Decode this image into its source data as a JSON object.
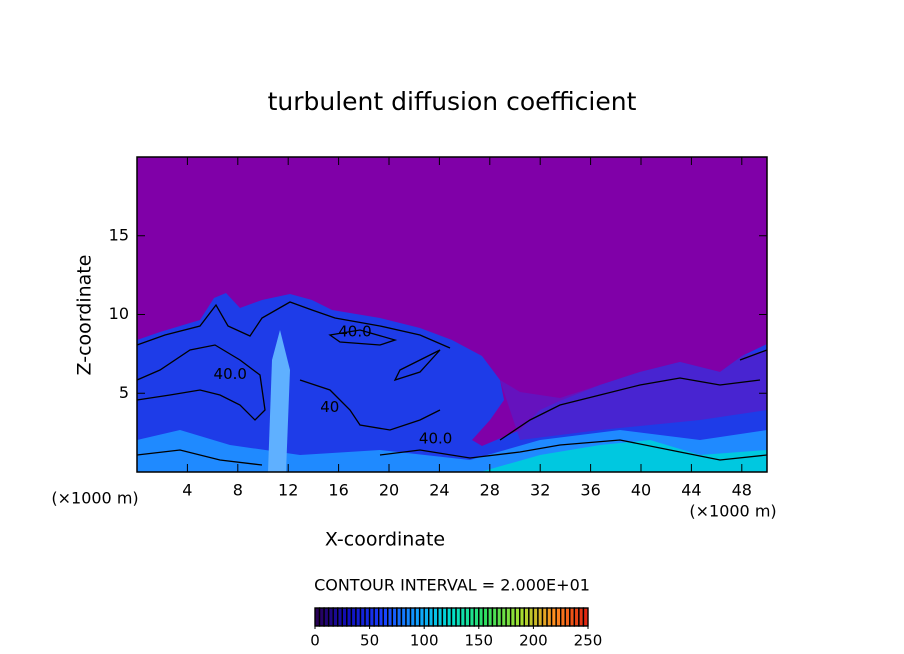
{
  "chart_data": {
    "type": "contour",
    "title": "turbulent diffusion coefficient",
    "x_label": "X-coordinate",
    "y_label": "Z-coordinate",
    "x_unit_label": "(×1000 m)",
    "y_unit_label": "(×1000 m)",
    "xlim": [
      0,
      50
    ],
    "ylim": [
      0,
      20
    ],
    "xticks": [
      4,
      8,
      12,
      16,
      20,
      24,
      28,
      32,
      36,
      40,
      44,
      48
    ],
    "yticks": [
      5,
      10,
      15
    ],
    "contour_interval_label": "CONTOUR INTERVAL = 2.000E+01",
    "contour_labels": [
      {
        "text": "40.0",
        "x": 17.3,
        "z": 8.9
      },
      {
        "text": "40.0",
        "x": 7.4,
        "z": 6.2
      },
      {
        "text": "40",
        "x": 15.3,
        "z": 4.1
      },
      {
        "text": "40.0",
        "x": 23.7,
        "z": 2.1
      }
    ],
    "colorbar": {
      "clim": [
        0,
        250
      ],
      "ticks": [
        0,
        50,
        100,
        150,
        200,
        250
      ],
      "colormap": [
        "#2a0050",
        "#1010c0",
        "#1a40ff",
        "#10a0ff",
        "#00e0d0",
        "#30e060",
        "#a0e030",
        "#ff9020",
        "#e02010"
      ]
    }
  }
}
